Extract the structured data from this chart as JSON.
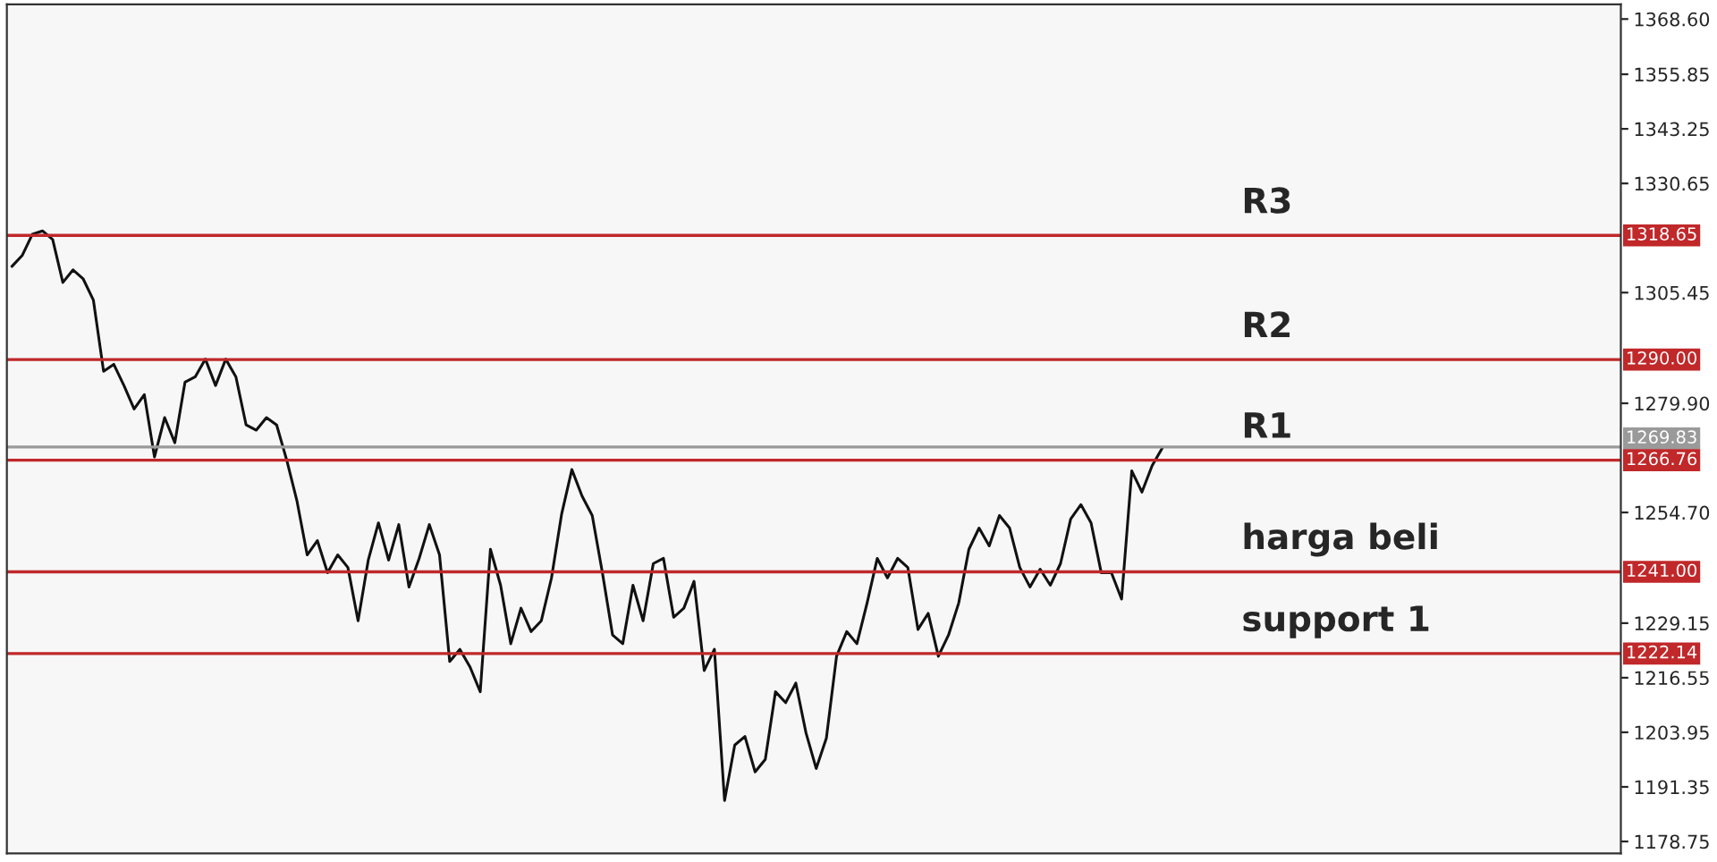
{
  "chart_data": {
    "type": "line",
    "tick_labels": "y",
    "grid": false,
    "legend": false,
    "marker": "none",
    "line_style": "solid",
    "ylim": [
      1176,
      1372
    ],
    "categories": [
      null,
      null,
      null,
      null,
      null,
      null,
      null,
      null,
      null,
      null,
      null,
      null,
      null,
      null,
      null,
      null,
      null,
      null,
      null,
      null,
      null,
      null,
      null,
      null,
      null,
      null,
      null,
      null,
      null,
      null,
      null,
      null,
      null,
      null,
      null,
      null,
      null,
      null,
      null,
      null,
      null,
      null,
      null,
      null,
      null,
      null,
      null,
      null,
      null,
      null,
      null,
      null,
      null,
      null,
      null,
      null,
      null,
      null,
      null,
      null,
      null,
      null,
      null,
      null,
      null,
      null,
      null,
      null,
      null,
      null,
      null,
      null,
      null,
      null,
      null,
      null,
      null,
      null,
      null,
      null,
      null,
      null,
      null,
      null,
      null,
      null,
      null,
      null,
      null,
      null,
      null,
      null,
      null,
      null,
      null,
      null,
      null,
      null,
      null,
      null,
      null,
      null,
      null,
      null,
      null,
      null,
      null,
      null,
      null,
      null,
      null,
      null,
      null,
      null
    ],
    "yticks": [
      1178.75,
      1191.35,
      1203.95,
      1216.55,
      1229.15,
      {
        "value": 1254.7,
        "label": "1254.70"
      },
      {
        "value": 1279.9,
        "label": "1279.90"
      },
      1305.45,
      1330.65,
      1343.25,
      1355.85,
      {
        "value": 1368.6,
        "label": "1368.60"
      }
    ],
    "annotations": [
      {
        "text": "R3",
        "y": 1318.65
      },
      {
        "text": "R2",
        "y": 1290.0
      },
      {
        "text": "R1",
        "y": 1266.76
      },
      {
        "text": "harga beli",
        "y": 1241.0
      },
      {
        "text": "support 1",
        "y": 1222.14
      }
    ],
    "series": [
      {
        "color": "#111111",
        "values": [
          1311.5,
          1314.0,
          1318.9,
          1319.7,
          1317.7,
          1307.8,
          1310.7,
          1308.6,
          1303.7,
          1287.3,
          1288.9,
          1284.0,
          1278.6,
          1281.9,
          1267.5,
          1276.6,
          1270.8,
          1284.8,
          1286.0,
          1290.1,
          1284.0,
          1290.1,
          1286.0,
          1274.9,
          1273.7,
          1276.6,
          1274.9,
          1266.7,
          1257.3,
          1244.9,
          1248.2,
          1240.8,
          1244.9,
          1242.0,
          1229.7,
          1243.7,
          1252.3,
          1243.7,
          1251.9,
          1237.5,
          1244.1,
          1251.9,
          1244.9,
          1220.3,
          1223.1,
          1219.0,
          1213.3,
          1246.2,
          1237.9,
          1224.4,
          1232.6,
          1227.2,
          1229.7,
          1239.6,
          1254.4,
          1264.6,
          1258.5,
          1254.0,
          1240.8,
          1226.4,
          1224.4,
          1237.9,
          1229.7,
          1242.9,
          1244.1,
          1230.5,
          1232.6,
          1238.8,
          1218.2,
          1223.1,
          1188.2,
          1201.0,
          1203.0,
          1194.8,
          1197.7,
          1213.3,
          1210.8,
          1215.3,
          1203.8,
          1195.6,
          1202.6,
          1221.5,
          1227.2,
          1224.4,
          1233.8,
          1244.1,
          1239.6,
          1244.1,
          1242.0,
          1227.7,
          1231.4,
          1221.5,
          1226.4,
          1233.8,
          1246.2,
          1251.1,
          1247.0,
          1254.0,
          1251.1,
          1242.0,
          1237.5,
          1241.6,
          1237.9,
          1242.9,
          1253.2,
          1256.5,
          1252.3,
          1240.8,
          1240.8,
          1234.7,
          1264.3,
          1259.4,
          1265.5,
          1269.6
        ]
      }
    ],
    "ref_lines": [
      {
        "axis": "y",
        "value": 1318.65,
        "label": "1318.65",
        "color": "#c0282a"
      },
      {
        "axis": "y",
        "value": 1290.0,
        "label": "1290.00",
        "color": "#c0282a"
      },
      {
        "axis": "y",
        "value": 1269.83,
        "label": "1269.83",
        "color": "#9a9a9a"
      },
      {
        "axis": "y",
        "value": 1266.76,
        "label": "1266.76",
        "color": "#c0282a"
      },
      {
        "axis": "y",
        "value": 1241.0,
        "label": "1241.00",
        "color": "#c0282a"
      },
      {
        "axis": "y",
        "value": 1222.14,
        "label": "1222.14",
        "color": "#c0282a"
      }
    ]
  }
}
